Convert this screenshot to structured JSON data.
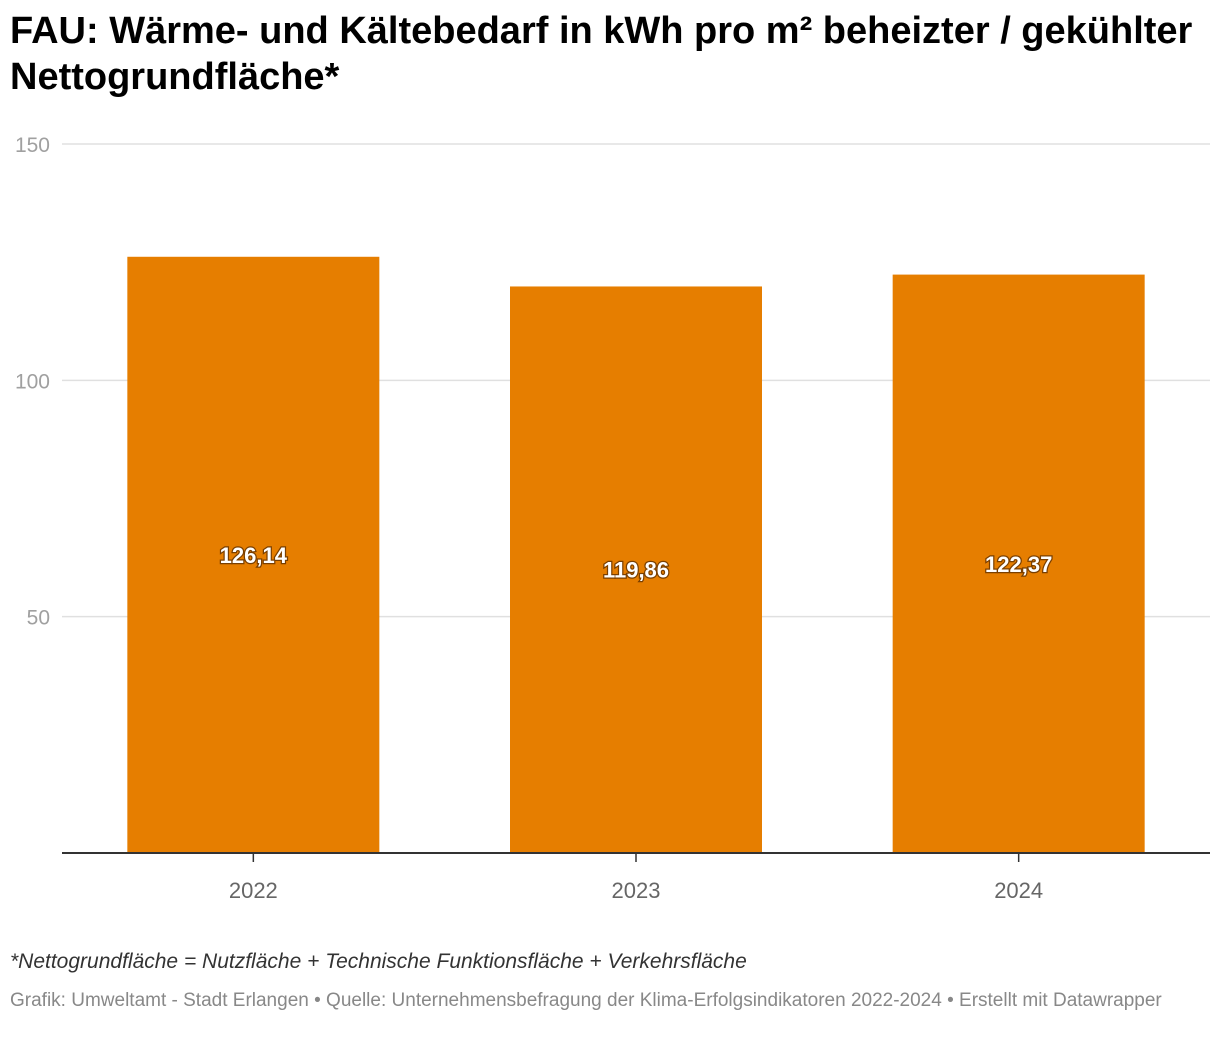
{
  "header": {
    "title": "FAU: Wärme- und Kältebedarf in kWh pro m² beheizter / gekühlter  Nettogrundfläche*"
  },
  "footer": {
    "note": "*Nettogrundfläche = Nutzfläche + Technische Funktionsfläche + Verkehrsfläche",
    "credit": "Grafik: Umweltamt - Stadt Erlangen",
    "source": "Quelle: Unternehmensbefragung der Klima-Erfolgsindikatoren 2022-2024",
    "made_with": "Erstellt mit Datawrapper",
    "separator": " • "
  },
  "chart_data": {
    "type": "bar",
    "categories": [
      "2022",
      "2023",
      "2024"
    ],
    "values": [
      126.14,
      119.86,
      122.37
    ],
    "value_labels": [
      "126,14",
      "119,86",
      "122,37"
    ],
    "ylim": [
      0,
      150
    ],
    "yticks": [
      50,
      100,
      150
    ],
    "ytick_labels": [
      "50",
      "100",
      "150"
    ],
    "grid": true,
    "bar_color": "#e67e00",
    "xlabel": "",
    "ylabel": ""
  }
}
